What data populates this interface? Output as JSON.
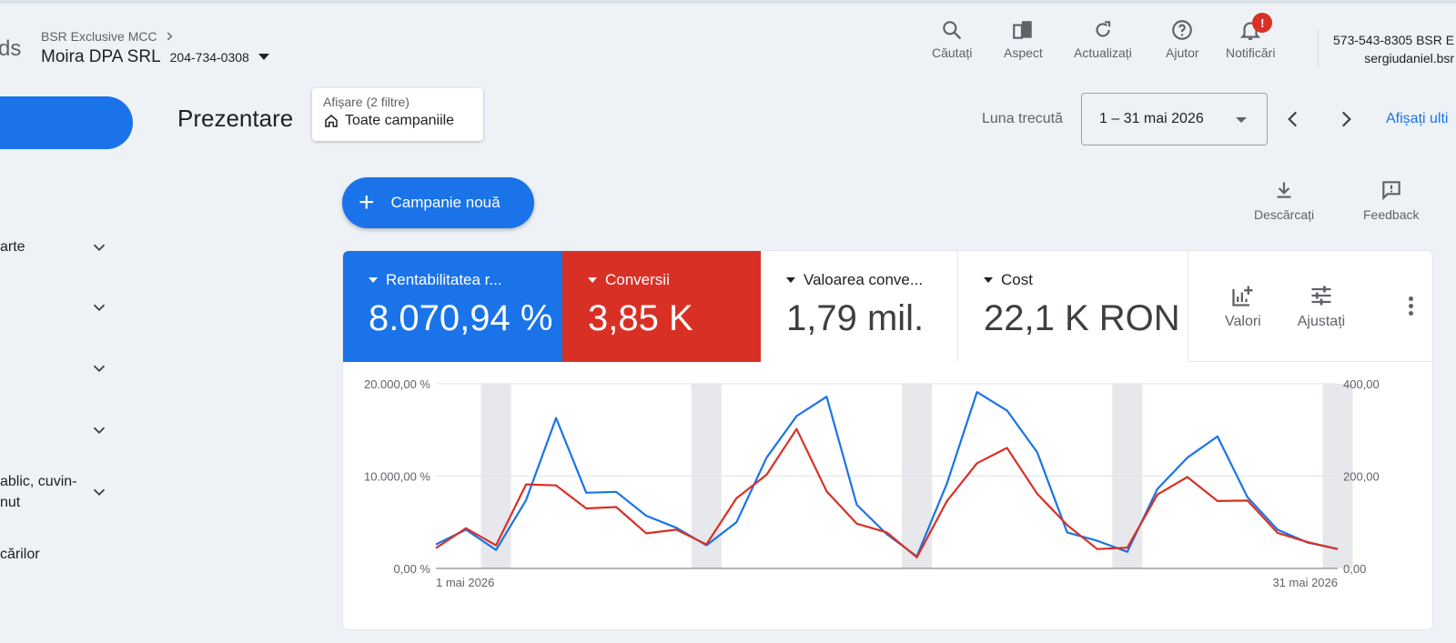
{
  "header": {
    "logo_fragment": "ds",
    "mcc_name": "BSR Exclusive MCC",
    "account_name": "Moira DPA SRL",
    "account_id": "204-734-0308",
    "tools": [
      {
        "label": "Căutați",
        "icon": "search-icon"
      },
      {
        "label": "Aspect",
        "icon": "appearance-icon"
      },
      {
        "label": "Actualizați",
        "icon": "refresh-icon"
      },
      {
        "label": "Ajutor",
        "icon": "help-icon"
      },
      {
        "label": "Notificări",
        "icon": "bell-icon"
      }
    ],
    "notification_badge": "!",
    "account_line1": "573-543-8305 BSR E",
    "account_line2": "sergiudaniel.bsr"
  },
  "sidebar": {
    "items": [
      {
        "label": "arte"
      },
      {
        "label": ""
      },
      {
        "label": ""
      },
      {
        "label": ""
      },
      {
        "label": "ablic, cuvin-\nnut"
      },
      {
        "label": "cărilor"
      }
    ]
  },
  "page": {
    "title": "Prezentare",
    "filter_small": "Afișare (2 filtre)",
    "filter_value": "Toate campaniile",
    "date_prefix": "Luna trecută",
    "date_range": "1 – 31 mai 2026",
    "show_last": "Afișați ulti",
    "new_campaign": "Campanie nouă",
    "download": "Descărcați",
    "feedback": "Feedback"
  },
  "metrics": [
    {
      "label": "Rentabilitatea r...",
      "value": "8.070,94 %",
      "color": "#1a73e8"
    },
    {
      "label": "Conversii",
      "value": "3,85 K",
      "color": "#d93025"
    },
    {
      "label": "Valoarea conve...",
      "value": "1,79 mil."
    },
    {
      "label": "Cost",
      "value": "22,1 K RON"
    }
  ],
  "metric_tools": {
    "values": "Valori",
    "adjust": "Ajustați"
  },
  "chart_data": {
    "type": "line",
    "x_start_label": "1 mai 2026",
    "x_end_label": "31 mai 2026",
    "y_left_ticks": [
      "20.000,00 %",
      "10.000,00 %",
      "0,00 %"
    ],
    "y_right_ticks": [
      "400,00",
      "200,00",
      "0,00"
    ],
    "ylim_left": [
      0,
      20000
    ],
    "ylim_right": [
      0,
      400
    ],
    "shaded_days": [
      3,
      10,
      17,
      24,
      31
    ],
    "series": [
      {
        "color": "#1a73e8",
        "axis": "left",
        "values": [
          2600,
          4200,
          2000,
          7400,
          16300,
          8200,
          8300,
          5700,
          4400,
          2500,
          5000,
          12000,
          16500,
          18600,
          6900,
          3700,
          1300,
          9200,
          19100,
          17100,
          12600,
          3900,
          3000,
          1800,
          8600,
          12000,
          14300,
          7700,
          4200,
          2800,
          2100
        ]
      },
      {
        "color": "#d93025",
        "axis": "right",
        "values": [
          44,
          87,
          50,
          182,
          180,
          130,
          133,
          76,
          84,
          52,
          152,
          203,
          302,
          167,
          97,
          78,
          24,
          146,
          228,
          261,
          162,
          94,
          42,
          45,
          160,
          198,
          146,
          147,
          77,
          57,
          42
        ]
      }
    ]
  }
}
